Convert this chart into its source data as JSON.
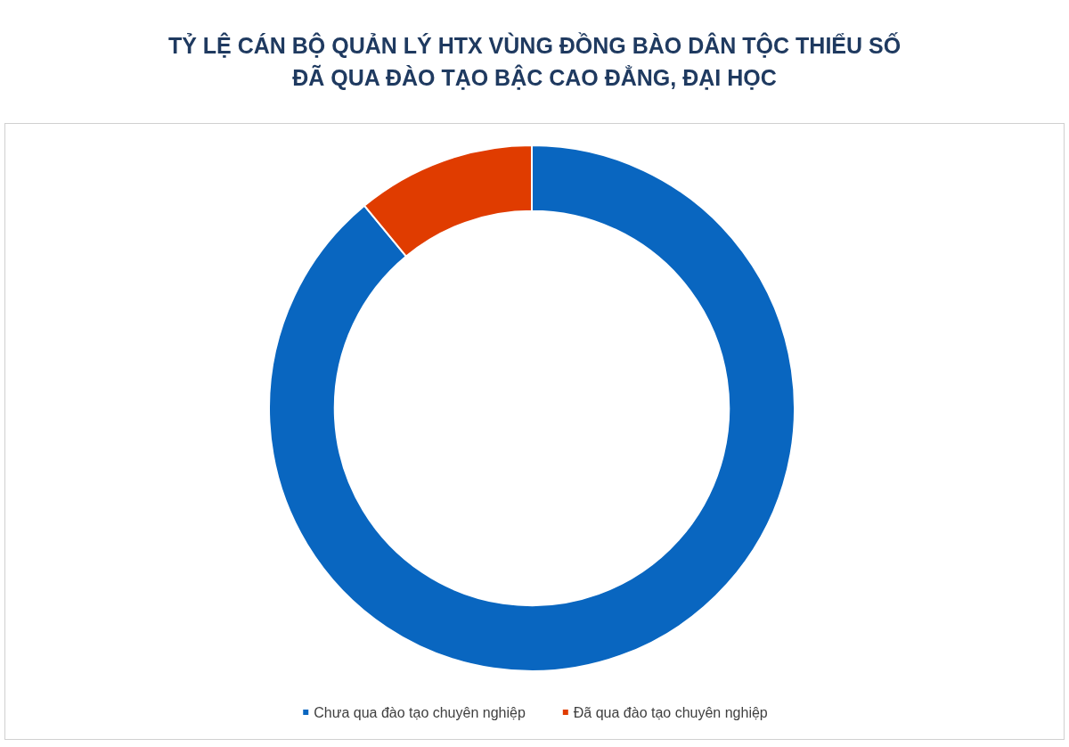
{
  "chart_data": {
    "type": "donut",
    "title": "TỶ LỆ CÁN BỘ QUẢN LÝ HTX VÙNG ĐỒNG BÀO DÂN TỘC THIỂU SỐ\nĐÃ QUA ĐÀO TẠO BẬC CAO ĐẲNG, ĐẠI HỌC",
    "categories": [
      "Chưa qua đào tạo chuyên nghiệp",
      "Đã qua đào tạo chuyên nghiệp"
    ],
    "values": [
      89,
      11
    ],
    "colors": [
      "#0966c0",
      "#e03c00"
    ],
    "legend": "bottom"
  }
}
